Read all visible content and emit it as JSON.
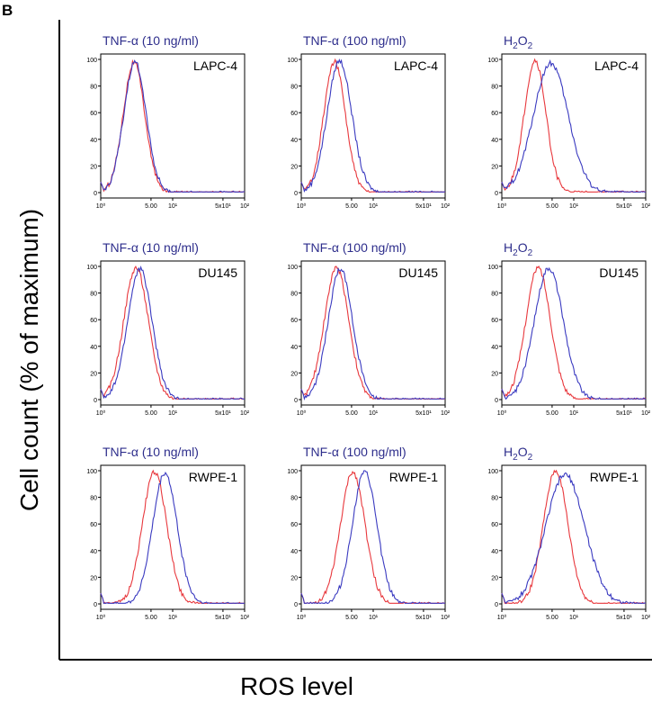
{
  "figure": {
    "panel_letter": "B",
    "ylabel": "Cell count (% of maximum)",
    "xlabel": "ROS level",
    "red_color": "#e8383d",
    "blue_color": "#3a3ac0",
    "title_color": "#2e2e8c"
  },
  "chart_data": [
    {
      "type": "line",
      "title": "TNF-α (10 ng/ml)",
      "title_sub": "",
      "cell_line": "LAPC-4",
      "x_scale": "log",
      "xlim": [
        1,
        100
      ],
      "ylim": [
        0,
        100
      ],
      "x_ticks": [
        "10⁰",
        "5.00",
        "10¹",
        "5x10¹",
        "10²"
      ],
      "y_ticks": [
        "0",
        "20",
        "40",
        "60",
        "80",
        "100"
      ],
      "series": [
        {
          "color": "red",
          "peak_x": 2.9,
          "peak_y": 98,
          "width": 0.15
        },
        {
          "color": "blue",
          "peak_x": 3.0,
          "peak_y": 98,
          "width": 0.155
        }
      ]
    },
    {
      "type": "line",
      "title": "TNF-α (100 ng/ml)",
      "title_sub": "",
      "cell_line": "LAPC-4",
      "x_scale": "log",
      "xlim": [
        1,
        100
      ],
      "ylim": [
        0,
        100
      ],
      "x_ticks": [
        "10⁰",
        "5.00",
        "10¹",
        "5x10¹",
        "10²"
      ],
      "y_ticks": [
        "0",
        "20",
        "40",
        "60",
        "80",
        "100"
      ],
      "series": [
        {
          "color": "red",
          "peak_x": 2.9,
          "peak_y": 98,
          "width": 0.15
        },
        {
          "color": "blue",
          "peak_x": 3.4,
          "peak_y": 99,
          "width": 0.17
        }
      ]
    },
    {
      "type": "line",
      "title": "H",
      "title_sub": "2",
      "title_tail": "O",
      "title_sub2": "2",
      "cell_line": "LAPC-4",
      "x_scale": "log",
      "xlim": [
        1,
        100
      ],
      "ylim": [
        0,
        100
      ],
      "x_ticks": [
        "10⁰",
        "5.00",
        "10¹",
        "5x10¹",
        "10²"
      ],
      "y_ticks": [
        "0",
        "20",
        "40",
        "60",
        "80",
        "100"
      ],
      "series": [
        {
          "color": "red",
          "peak_x": 2.9,
          "peak_y": 99,
          "width": 0.15
        },
        {
          "color": "blue",
          "peak_x": 4.8,
          "peak_y": 97,
          "width": 0.24
        }
      ]
    },
    {
      "type": "line",
      "title": "TNF-α (10 ng/ml)",
      "title_sub": "",
      "cell_line": "DU145",
      "x_scale": "log",
      "xlim": [
        1,
        100
      ],
      "ylim": [
        0,
        100
      ],
      "x_ticks": [
        "10⁰",
        "5.00",
        "10¹",
        "5x10¹",
        "10²"
      ],
      "y_ticks": [
        "0",
        "20",
        "40",
        "60",
        "80",
        "100"
      ],
      "series": [
        {
          "color": "red",
          "peak_x": 3.1,
          "peak_y": 99,
          "width": 0.17
        },
        {
          "color": "blue",
          "peak_x": 3.5,
          "peak_y": 98,
          "width": 0.17
        }
      ]
    },
    {
      "type": "line",
      "title": "TNF-α (100 ng/ml)",
      "title_sub": "",
      "cell_line": "DU145",
      "x_scale": "log",
      "xlim": [
        1,
        100
      ],
      "ylim": [
        0,
        100
      ],
      "x_ticks": [
        "10⁰",
        "5.00",
        "10¹",
        "5x10¹",
        "10²"
      ],
      "y_ticks": [
        "0",
        "20",
        "40",
        "60",
        "80",
        "100"
      ],
      "series": [
        {
          "color": "red",
          "peak_x": 3.1,
          "peak_y": 99,
          "width": 0.17
        },
        {
          "color": "blue",
          "peak_x": 3.5,
          "peak_y": 98,
          "width": 0.17
        }
      ]
    },
    {
      "type": "line",
      "title": "H",
      "title_sub": "2",
      "title_tail": "O",
      "title_sub2": "2",
      "cell_line": "DU145",
      "x_scale": "log",
      "xlim": [
        1,
        100
      ],
      "ylim": [
        0,
        100
      ],
      "x_ticks": [
        "10⁰",
        "5.00",
        "10¹",
        "5x10¹",
        "10²"
      ],
      "y_ticks": [
        "0",
        "20",
        "40",
        "60",
        "80",
        "100"
      ],
      "series": [
        {
          "color": "red",
          "peak_x": 3.2,
          "peak_y": 99,
          "width": 0.17
        },
        {
          "color": "blue",
          "peak_x": 4.5,
          "peak_y": 99,
          "width": 0.2
        }
      ]
    },
    {
      "type": "line",
      "title": "TNF-α (10 ng/ml)",
      "title_sub": "",
      "cell_line": "RWPE-1",
      "x_scale": "log",
      "xlim": [
        1,
        100
      ],
      "ylim": [
        0,
        100
      ],
      "x_ticks": [
        "10⁰",
        "5.00",
        "10¹",
        "5x10¹",
        "10²"
      ],
      "y_ticks": [
        "0",
        "20",
        "40",
        "60",
        "80",
        "100"
      ],
      "series": [
        {
          "color": "red",
          "peak_x": 5.6,
          "peak_y": 99,
          "width": 0.17
        },
        {
          "color": "blue",
          "peak_x": 7.8,
          "peak_y": 98,
          "width": 0.17
        }
      ]
    },
    {
      "type": "line",
      "title": "TNF-α (100 ng/ml)",
      "title_sub": "",
      "cell_line": "RWPE-1",
      "x_scale": "log",
      "xlim": [
        1,
        100
      ],
      "ylim": [
        0,
        100
      ],
      "x_ticks": [
        "10⁰",
        "5.00",
        "10¹",
        "5x10¹",
        "10²"
      ],
      "y_ticks": [
        "0",
        "20",
        "40",
        "60",
        "80",
        "100"
      ],
      "series": [
        {
          "color": "red",
          "peak_x": 5.2,
          "peak_y": 99,
          "width": 0.17
        },
        {
          "color": "blue",
          "peak_x": 7.6,
          "peak_y": 99,
          "width": 0.17
        }
      ]
    },
    {
      "type": "line",
      "title": "H",
      "title_sub": "2",
      "title_tail": "O",
      "title_sub2": "2",
      "cell_line": "RWPE-1",
      "x_scale": "log",
      "xlim": [
        1,
        100
      ],
      "ylim": [
        0,
        100
      ],
      "x_ticks": [
        "10⁰",
        "5.00",
        "10¹",
        "5x10¹",
        "10²"
      ],
      "y_ticks": [
        "0",
        "20",
        "40",
        "60",
        "80",
        "100"
      ],
      "series": [
        {
          "color": "red",
          "peak_x": 5.6,
          "peak_y": 100,
          "width": 0.17
        },
        {
          "color": "blue",
          "peak_x": 7.6,
          "peak_y": 97,
          "width": 0.27
        }
      ]
    }
  ]
}
